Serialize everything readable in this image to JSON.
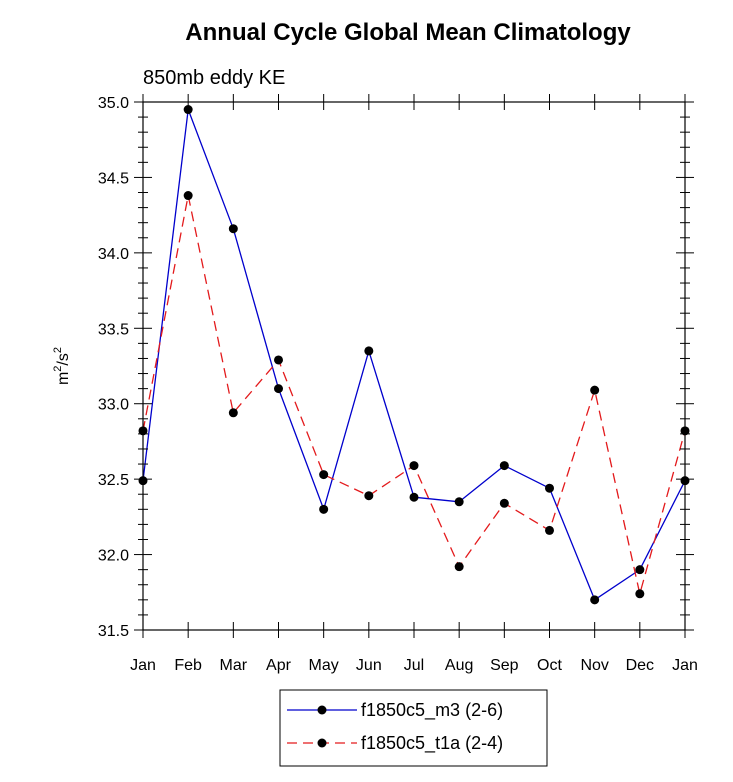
{
  "chart_data": {
    "type": "line",
    "title": "Annual Cycle Global Mean Climatology",
    "subtitle": "850mb eddy KE",
    "ylabel_base": "m",
    "ylabel_sup1": "2",
    "ylabel_mid": "/s",
    "ylabel_sup2": "2",
    "xlabel": "",
    "categories": [
      "Jan",
      "Feb",
      "Mar",
      "Apr",
      "May",
      "Jun",
      "Jul",
      "Aug",
      "Sep",
      "Oct",
      "Nov",
      "Dec",
      "Jan"
    ],
    "ylim": [
      31.5,
      35.0
    ],
    "yticks": [
      "31.5",
      "32.0",
      "32.5",
      "33.0",
      "33.5",
      "34.0",
      "34.5",
      "35.0"
    ],
    "grid": false,
    "legend_position": "bottom-center",
    "series": [
      {
        "name": "f1850c5_m3 (2-6)",
        "color": "#0000cc",
        "dash": "solid",
        "values": [
          32.49,
          34.95,
          34.16,
          33.1,
          32.3,
          33.35,
          32.38,
          32.35,
          32.59,
          32.44,
          31.7,
          31.9,
          32.49
        ]
      },
      {
        "name": "f1850c5_t1a (2-4)",
        "color": "#e31a1c",
        "dash": "dashed",
        "values": [
          32.82,
          34.38,
          32.94,
          33.29,
          32.53,
          32.39,
          32.59,
          31.92,
          32.34,
          32.16,
          33.09,
          31.74,
          32.82
        ]
      }
    ]
  }
}
